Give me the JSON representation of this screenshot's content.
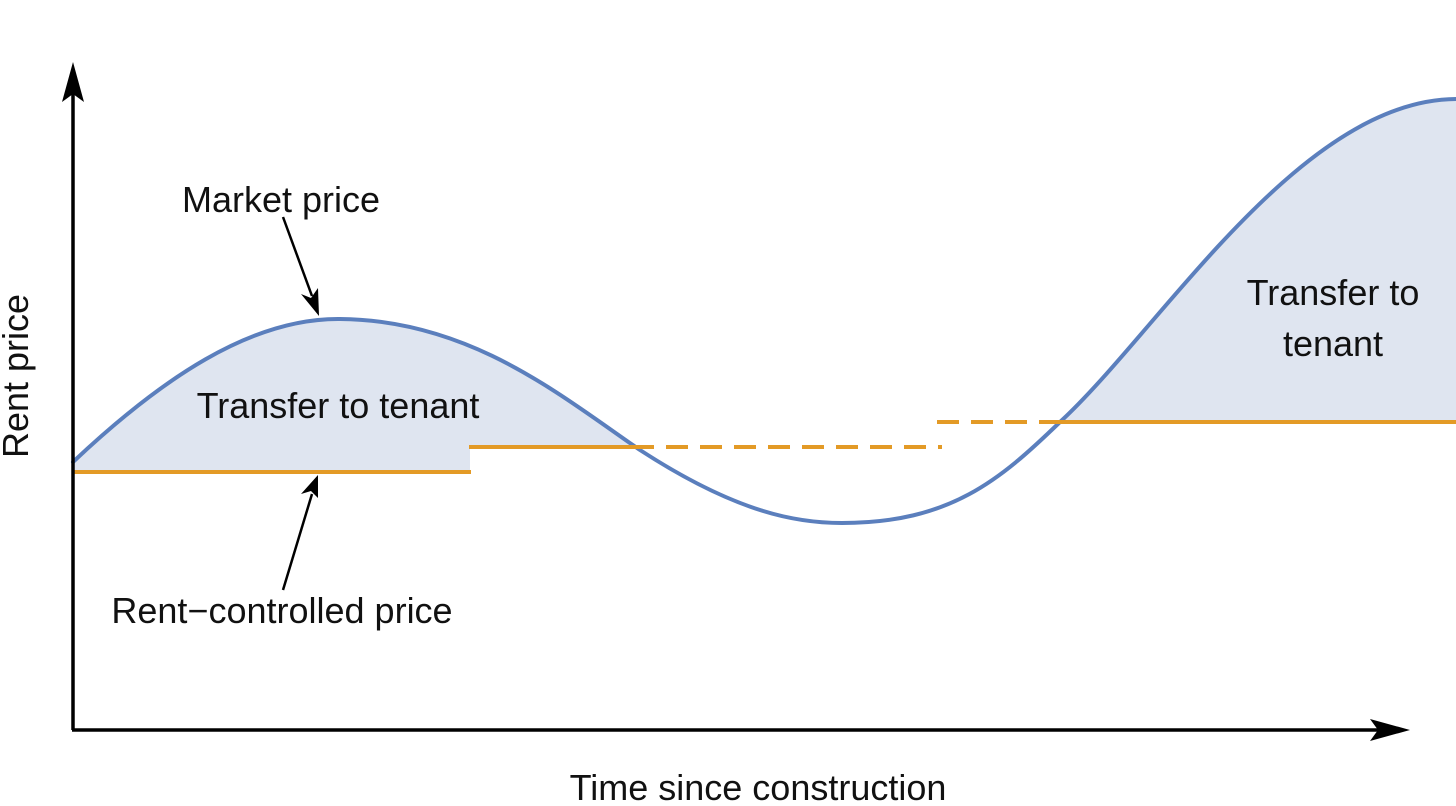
{
  "axes": {
    "y_label": "Rent price",
    "x_label": "Time since construction"
  },
  "annotations": {
    "market_price": "Market price",
    "rent_controlled_price": "Rent−controlled price",
    "transfer_left": "Transfer to tenant",
    "transfer_right_line1": "Transfer to",
    "transfer_right_line2": "tenant"
  },
  "colors": {
    "market_line": "#5b7fbd",
    "shade_fill": "#dfe5f0",
    "rent_line": "#e39a26",
    "axis": "#000000",
    "text": "#111111"
  }
}
